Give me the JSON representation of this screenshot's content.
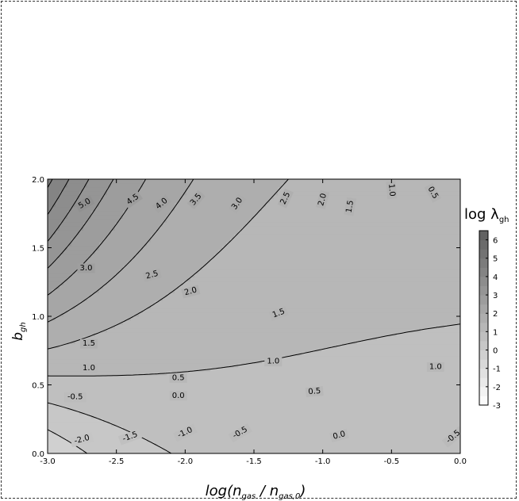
{
  "chart_data": {
    "type": "contour",
    "xlabel": "log(n_gas / n_gas,0)",
    "ylabel": "b_gh",
    "xlim": [
      -3.0,
      0.0
    ],
    "ylim": [
      0.0,
      2.0
    ],
    "x_ticks": [
      -3.0,
      -2.5,
      -2.0,
      -1.5,
      -1.0,
      -0.5,
      0.0
    ],
    "y_ticks": [
      0.0,
      0.5,
      1.0,
      1.5,
      2.0
    ],
    "x_tick_labels": [
      "-3.0",
      "-2.5",
      "-2.0",
      "-1.5",
      "-1.0",
      "-0.5",
      "0.0"
    ],
    "y_tick_labels": [
      "0.0",
      "0.5",
      "1.0",
      "1.5",
      "2.0"
    ],
    "colorbar": {
      "title": "log λ_gh",
      "ticks": [
        6,
        5,
        4,
        3,
        2,
        1,
        0,
        -1,
        -2,
        -3
      ],
      "tick_labels": [
        "6",
        "5",
        "4",
        "3",
        "2",
        "1",
        "0",
        "-1",
        "-2",
        "-3"
      ]
    },
    "contour_levels": [
      -2.5,
      -2.0,
      -1.5,
      -1.0,
      -0.5,
      0.0,
      0.5,
      1.0,
      1.5,
      2.0,
      2.5,
      3.0,
      3.5,
      4.0,
      4.5,
      5.0,
      5.5
    ],
    "contour_labels": [
      {
        "text": "5.0",
        "x": -2.73,
        "y": 1.82,
        "angle": -30
      },
      {
        "text": "4.5",
        "x": -2.38,
        "y": 1.85,
        "angle": -35
      },
      {
        "text": "4.0",
        "x": -2.17,
        "y": 1.82,
        "angle": -40
      },
      {
        "text": "3.5",
        "x": -1.92,
        "y": 1.85,
        "angle": -50
      },
      {
        "text": "3.0",
        "x": -1.62,
        "y": 1.82,
        "angle": -55
      },
      {
        "text": "2.5",
        "x": -1.27,
        "y": 1.86,
        "angle": -65
      },
      {
        "text": "2.0",
        "x": -1.0,
        "y": 1.85,
        "angle": -75
      },
      {
        "text": "1.5",
        "x": -0.8,
        "y": 1.8,
        "angle": -80
      },
      {
        "text": "1.0",
        "x": -0.5,
        "y": 1.92,
        "angle": 85
      },
      {
        "text": "0.5",
        "x": -0.2,
        "y": 1.9,
        "angle": 60
      },
      {
        "text": "3.0",
        "x": -2.72,
        "y": 1.35,
        "angle": 0
      },
      {
        "text": "2.5",
        "x": -2.24,
        "y": 1.3,
        "angle": -15
      },
      {
        "text": "2.0",
        "x": -1.96,
        "y": 1.18,
        "angle": -15
      },
      {
        "text": "1.5",
        "x": -1.32,
        "y": 1.02,
        "angle": -20
      },
      {
        "text": "1.5",
        "x": -2.7,
        "y": 0.8,
        "angle": 0
      },
      {
        "text": "1.0",
        "x": -2.7,
        "y": 0.62,
        "angle": 0
      },
      {
        "text": "1.0",
        "x": -1.36,
        "y": 0.67,
        "angle": 0
      },
      {
        "text": "1.0",
        "x": -0.18,
        "y": 0.63,
        "angle": 0
      },
      {
        "text": "0.5",
        "x": -2.05,
        "y": 0.55,
        "angle": 0
      },
      {
        "text": "0.5",
        "x": -1.06,
        "y": 0.45,
        "angle": -5
      },
      {
        "text": "0.0",
        "x": -2.05,
        "y": 0.42,
        "angle": 0
      },
      {
        "text": "0.0",
        "x": -0.88,
        "y": 0.13,
        "angle": -15
      },
      {
        "text": "-0.5",
        "x": -2.8,
        "y": 0.41,
        "angle": 0
      },
      {
        "text": "-0.5",
        "x": -1.6,
        "y": 0.15,
        "angle": -30
      },
      {
        "text": "-0.5",
        "x": -0.05,
        "y": 0.12,
        "angle": -40
      },
      {
        "text": "-1.0",
        "x": -2.0,
        "y": 0.15,
        "angle": -25
      },
      {
        "text": "-1.5",
        "x": -2.4,
        "y": 0.12,
        "angle": -20
      },
      {
        "text": "-2.0",
        "x": -2.75,
        "y": 0.1,
        "angle": -15
      }
    ]
  }
}
